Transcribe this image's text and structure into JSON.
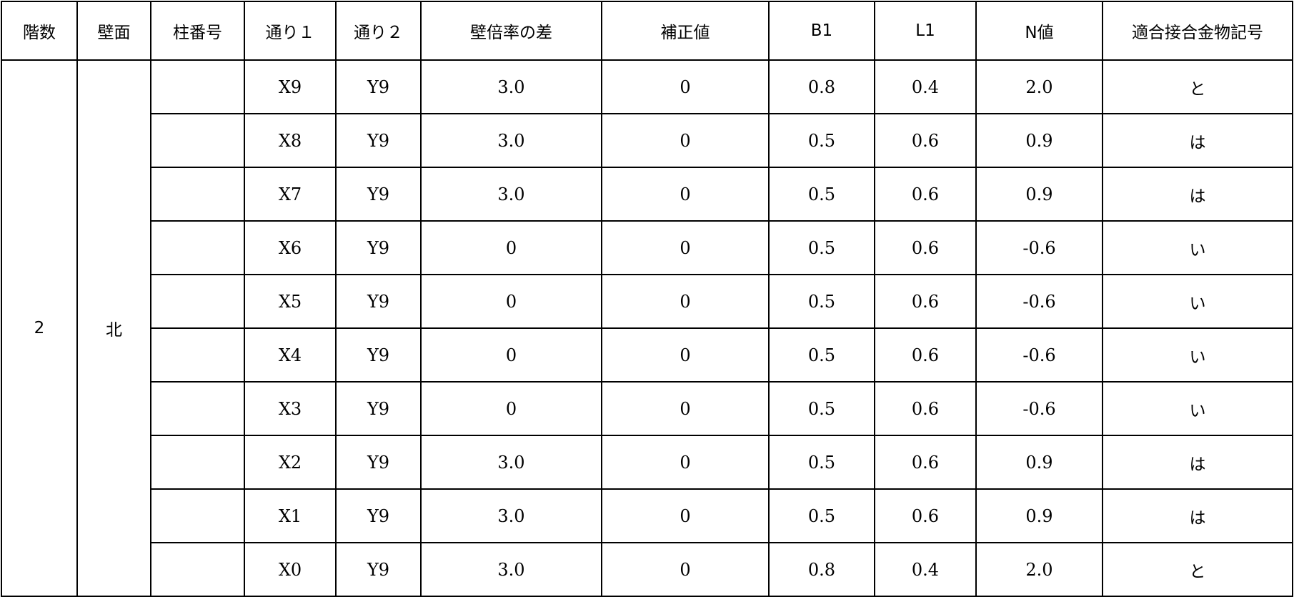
{
  "table": {
    "headers": [
      "階数",
      "壁面",
      "柱番号",
      "通り１",
      "通り２",
      "壁倍率の差",
      "補正値",
      "B1",
      "L1",
      "N値",
      "適合接合金物記号"
    ],
    "floor": "2",
    "wall": "北",
    "rows": [
      {
        "column_no": "",
        "street1": "X9",
        "street2": "Y9",
        "wall_ratio_diff": "3.0",
        "correction": "0",
        "b1": "0.8",
        "l1": "0.4",
        "n_value": "2.0",
        "hardware": "と"
      },
      {
        "column_no": "",
        "street1": "X8",
        "street2": "Y9",
        "wall_ratio_diff": "3.0",
        "correction": "0",
        "b1": "0.5",
        "l1": "0.6",
        "n_value": "0.9",
        "hardware": "は"
      },
      {
        "column_no": "",
        "street1": "X7",
        "street2": "Y9",
        "wall_ratio_diff": "3.0",
        "correction": "0",
        "b1": "0.5",
        "l1": "0.6",
        "n_value": "0.9",
        "hardware": "は"
      },
      {
        "column_no": "",
        "street1": "X6",
        "street2": "Y9",
        "wall_ratio_diff": "0",
        "correction": "0",
        "b1": "0.5",
        "l1": "0.6",
        "n_value": "-0.6",
        "hardware": "い"
      },
      {
        "column_no": "",
        "street1": "X5",
        "street2": "Y9",
        "wall_ratio_diff": "0",
        "correction": "0",
        "b1": "0.5",
        "l1": "0.6",
        "n_value": "-0.6",
        "hardware": "い"
      },
      {
        "column_no": "",
        "street1": "X4",
        "street2": "Y9",
        "wall_ratio_diff": "0",
        "correction": "0",
        "b1": "0.5",
        "l1": "0.6",
        "n_value": "-0.6",
        "hardware": "い"
      },
      {
        "column_no": "",
        "street1": "X3",
        "street2": "Y9",
        "wall_ratio_diff": "0",
        "correction": "0",
        "b1": "0.5",
        "l1": "0.6",
        "n_value": "-0.6",
        "hardware": "い"
      },
      {
        "column_no": "",
        "street1": "X2",
        "street2": "Y9",
        "wall_ratio_diff": "3.0",
        "correction": "0",
        "b1": "0.5",
        "l1": "0.6",
        "n_value": "0.9",
        "hardware": "は"
      },
      {
        "column_no": "",
        "street1": "X1",
        "street2": "Y9",
        "wall_ratio_diff": "3.0",
        "correction": "0",
        "b1": "0.5",
        "l1": "0.6",
        "n_value": "0.9",
        "hardware": "は"
      },
      {
        "column_no": "",
        "street1": "X0",
        "street2": "Y9",
        "wall_ratio_diff": "3.0",
        "correction": "0",
        "b1": "0.8",
        "l1": "0.4",
        "n_value": "2.0",
        "hardware": "と"
      }
    ]
  }
}
